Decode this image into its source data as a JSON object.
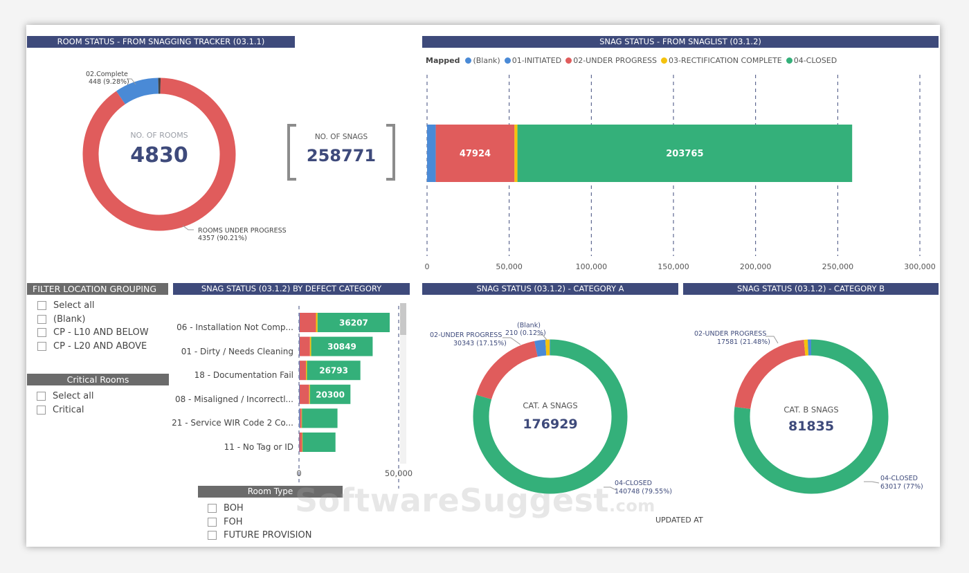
{
  "room_status": {
    "header": "ROOM STATUS - FROM SNAGGING TRACKER (03.1.1)",
    "center_label": "NO. OF ROOMS",
    "center_value": "4830",
    "slice_complete": {
      "label": "02.Complete",
      "value": "448 (9.28%)",
      "fraction": 0.0928,
      "color": "#4a8ad6"
    },
    "slice_progress": {
      "label": "ROOMS UNDER PROGRESS",
      "value": "4357 (90.21%)",
      "fraction": 0.9021,
      "color": "#e05c5c"
    },
    "slice_other": {
      "fraction": 0.0051,
      "color": "#444444"
    }
  },
  "snag_kpi": {
    "label": "NO. OF SNAGS",
    "value": "258771"
  },
  "snag_status": {
    "header": "SNAG STATUS - FROM SNAGLIST (03.1.2)",
    "legend_title": "Mapped",
    "legend": [
      {
        "label": "(Blank)",
        "color": "#4a8ad6"
      },
      {
        "label": "01-INITIATED",
        "color": "#4a8ad6"
      },
      {
        "label": "02-UNDER PROGRESS",
        "color": "#e05c5c"
      },
      {
        "label": "03-RECTIFICATION COMPLETE",
        "color": "#f4c20d"
      },
      {
        "label": "04-CLOSED",
        "color": "#34b07a"
      }
    ],
    "axis_ticks": [
      "0",
      "50,000",
      "100,000",
      "150,000",
      "200,000",
      "250,000",
      "300,000"
    ],
    "axis_max": 300000,
    "segments": [
      {
        "name": "blank",
        "value": 5300,
        "color": "#4a8ad6",
        "label": ""
      },
      {
        "name": "under-progress",
        "value": 47924,
        "color": "#e05c5c",
        "label": "47924"
      },
      {
        "name": "rectification",
        "value": 1800,
        "color": "#f4c20d",
        "label": ""
      },
      {
        "name": "closed",
        "value": 203765,
        "color": "#34b07a",
        "label": "203765"
      }
    ]
  },
  "filters": {
    "location_header": "FILTER LOCATION GROUPING",
    "location_items": [
      "Select all",
      "(Blank)",
      "CP - L10 AND BELOW",
      "CP - L20 AND ABOVE"
    ],
    "critical_header": "Critical Rooms",
    "critical_items": [
      "Select all",
      "Critical"
    ],
    "roomtype_header": "Room Type",
    "roomtype_items": [
      "BOH",
      "FOH",
      "FUTURE PROVISION"
    ]
  },
  "defect_category": {
    "header": "SNAG STATUS (03.1.2) BY DEFECT CATEGORY",
    "axis_ticks": [
      "0",
      "50,000"
    ],
    "axis_max": 50000,
    "rows": [
      {
        "label": "06 - Installation Not Comp...",
        "blue": 300,
        "red": 8200,
        "yellow": 800,
        "green": 36207,
        "value_label": "36207"
      },
      {
        "label": "01 - Dirty / Needs Cleaning",
        "blue": 300,
        "red": 5200,
        "yellow": 600,
        "green": 30849,
        "value_label": "30849"
      },
      {
        "label": "18 - Documentation Fail",
        "blue": 300,
        "red": 3200,
        "yellow": 500,
        "green": 26793,
        "value_label": "26793"
      },
      {
        "label": "08 - Misaligned / Incorrectl...",
        "blue": 300,
        "red": 4800,
        "yellow": 400,
        "green": 20300,
        "value_label": "20300"
      },
      {
        "label": "21 - Service WIR Code 2 Co...",
        "blue": 400,
        "red": 900,
        "yellow": 200,
        "green": 17800,
        "value_label": ""
      },
      {
        "label": "11 - No Tag or ID",
        "blue": 200,
        "red": 1400,
        "yellow": 200,
        "green": 16500,
        "value_label": ""
      }
    ]
  },
  "category_a": {
    "header": "SNAG STATUS (03.1.2) - CATEGORY A",
    "center_label": "CAT. A SNAGS",
    "center_value": "176929",
    "label_progress": "02-UNDER PROGRESS",
    "value_progress": "30343 (17.15%)",
    "label_blank": "(Blank)",
    "value_blank": "210 (0.12%)",
    "label_closed": "04-CLOSED",
    "value_closed": "140748 (79.55%)",
    "slices": [
      {
        "name": "closed",
        "fraction": 0.7955,
        "color": "#34b07a"
      },
      {
        "name": "under-progress",
        "fraction": 0.1715,
        "color": "#e05c5c"
      },
      {
        "name": "initiated",
        "fraction": 0.0228,
        "color": "#4a8ad6"
      },
      {
        "name": "rectification",
        "fraction": 0.009,
        "color": "#f4c20d"
      },
      {
        "name": "blank",
        "fraction": 0.0012,
        "color": "#4a8ad6"
      }
    ]
  },
  "category_b": {
    "header": "SNAG STATUS (03.1.2) - CATEGORY B",
    "center_label": "CAT. B SNAGS",
    "center_value": "81835",
    "label_progress": "02-UNDER PROGRESS",
    "value_progress": "17581 (21.48%)",
    "label_closed": "04-CLOSED",
    "value_closed": "63017 (77%)",
    "slices": [
      {
        "name": "closed",
        "fraction": 0.77,
        "color": "#34b07a"
      },
      {
        "name": "under-progress",
        "fraction": 0.2148,
        "color": "#e05c5c"
      },
      {
        "name": "rectification",
        "fraction": 0.008,
        "color": "#f4c20d"
      },
      {
        "name": "initiated",
        "fraction": 0.0072,
        "color": "#4a8ad6"
      }
    ]
  },
  "updated_at": "UPDATED AT",
  "watermark": {
    "main": "SoftwareSuggest",
    "domain": ".com"
  }
}
